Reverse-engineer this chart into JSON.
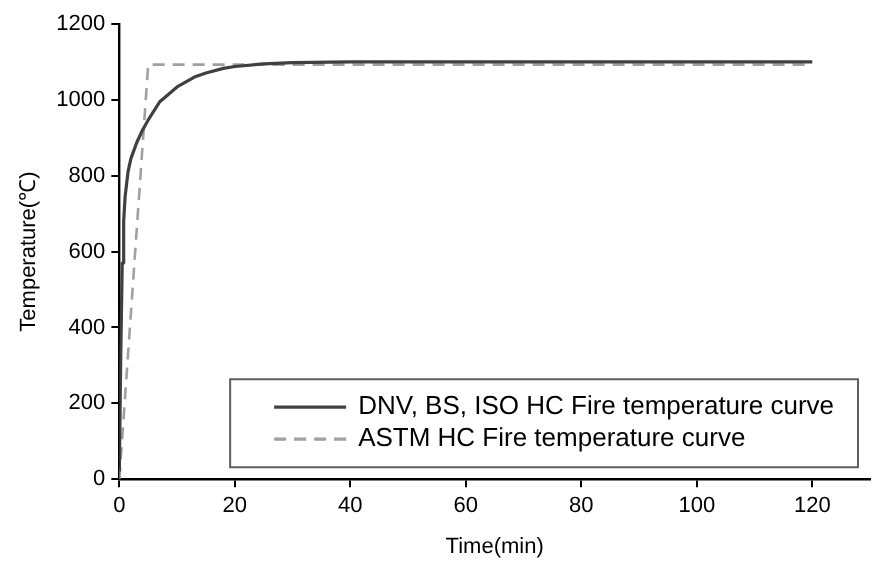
{
  "chart_data": {
    "type": "line",
    "xlabel": "Time(min)",
    "ylabel": "Temperature(℃)",
    "xlim": [
      0,
      130
    ],
    "xticks": [
      0,
      20,
      40,
      60,
      80,
      100,
      120
    ],
    "ylim": [
      0,
      1200
    ],
    "yticks": [
      0,
      200,
      400,
      600,
      800,
      1000,
      1200
    ],
    "grid": false,
    "legend": "bottom right",
    "marker": "none",
    "series": [
      {
        "name": "DNV, BS, ISO HC Fire temperature curve",
        "color": "#404040",
        "line_style": "solid",
        "x": [
          0,
          0.25,
          0.5,
          0.75,
          1,
          1.5,
          2,
          3,
          4,
          5,
          7,
          10,
          13,
          15,
          18,
          20,
          25,
          30,
          40,
          60,
          80,
          100,
          120
        ],
        "values": [
          20,
          330,
          570,
          680,
          745,
          810,
          845,
          887,
          920,
          947,
          995,
          1034,
          1060,
          1071,
          1083,
          1088,
          1095,
          1098,
          1100,
          1100,
          1100,
          1100,
          1100
        ]
      },
      {
        "name": "ASTM HC Fire temperature curve",
        "color": "#a0a0a0",
        "line_style": "dashed",
        "x": [
          0,
          5,
          120
        ],
        "values": [
          0,
          1093,
          1093
        ]
      }
    ]
  }
}
